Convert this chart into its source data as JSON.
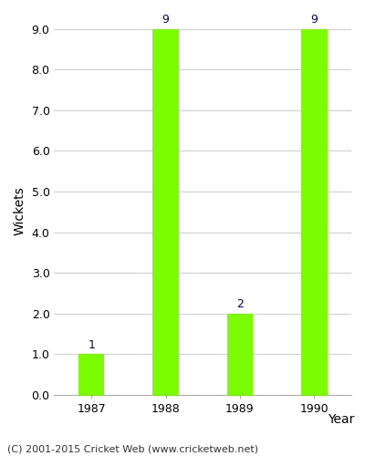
{
  "categories": [
    "1987",
    "1988",
    "1989",
    "1990"
  ],
  "values": [
    1,
    9,
    2,
    9
  ],
  "bar_color": "#7CFC00",
  "bar_edge_color": "#7CFC00",
  "xlabel": "Year",
  "ylabel": "Wickets",
  "ylim": [
    0,
    9.0
  ],
  "yticks": [
    0.0,
    1.0,
    2.0,
    3.0,
    4.0,
    5.0,
    6.0,
    7.0,
    8.0,
    9.0
  ],
  "annotation_color": "#000080",
  "annotation_fontsize": 9,
  "xlabel_fontsize": 10,
  "ylabel_fontsize": 10,
  "tick_fontsize": 9,
  "grid_color": "#cccccc",
  "background_color": "#ffffff",
  "footer_text": "(C) 2001-2015 Cricket Web (www.cricketweb.net)",
  "footer_fontsize": 8,
  "footer_color": "#333333",
  "bar_width": 0.35,
  "spine_color": "#aaaaaa"
}
